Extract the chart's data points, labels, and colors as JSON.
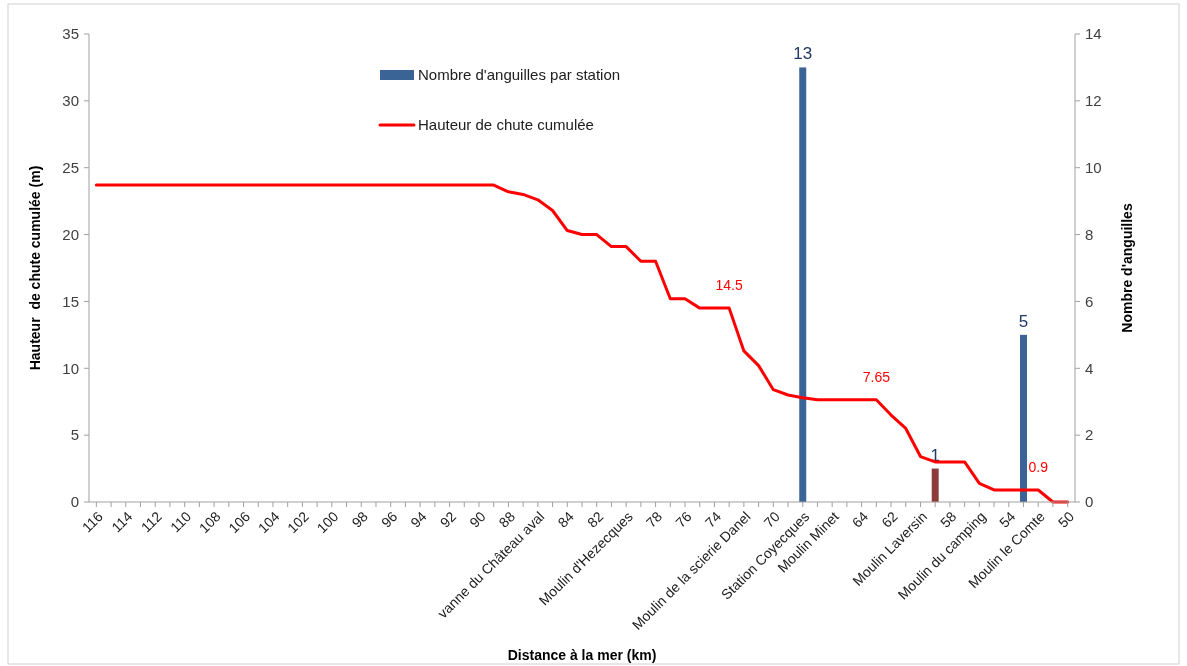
{
  "chart_data": {
    "type": "bar",
    "xlabel": "Distance à la mer (km)",
    "ylabel": "Hauteur  de chute cumulée (m)",
    "y2label": "Nombre d'anguilles",
    "categories": [
      "116",
      null,
      "114",
      null,
      "112",
      null,
      "110",
      null,
      "108",
      null,
      "106",
      null,
      "104",
      null,
      "102",
      null,
      "100",
      null,
      "98",
      null,
      "96",
      null,
      "94",
      null,
      "92",
      null,
      "90",
      null,
      "88",
      null,
      "vanne du Château aval",
      null,
      "84",
      null,
      "82",
      null,
      "Moulin d'Hezecques",
      null,
      "78",
      null,
      "76",
      null,
      "74",
      null,
      "Moulin de la scierie Danel",
      null,
      "70",
      null,
      "Station Coyecques",
      null,
      "Moulin Minet",
      null,
      "64",
      null,
      "62",
      null,
      "Moulin Laversin",
      null,
      "58",
      null,
      "Moulin du camping",
      null,
      "54",
      null,
      "Moulin le Comte",
      null,
      "50"
    ],
    "series": [
      {
        "name": "Nombre d'anguilles par station",
        "type": "bar",
        "axis": "y2",
        "color": "#3b6496",
        "values": [
          null,
          null,
          null,
          null,
          null,
          null,
          null,
          null,
          null,
          null,
          null,
          null,
          null,
          null,
          null,
          null,
          null,
          null,
          null,
          null,
          null,
          null,
          null,
          null,
          null,
          null,
          null,
          null,
          null,
          null,
          null,
          null,
          null,
          null,
          null,
          null,
          null,
          null,
          null,
          null,
          null,
          null,
          null,
          null,
          null,
          null,
          null,
          null,
          13,
          null,
          null,
          null,
          null,
          null,
          null,
          null,
          null,
          1,
          null,
          null,
          null,
          null,
          null,
          5,
          null,
          null,
          null
        ],
        "colors": [
          null,
          null,
          null,
          null,
          null,
          null,
          null,
          null,
          null,
          null,
          null,
          null,
          null,
          null,
          null,
          null,
          null,
          null,
          null,
          null,
          null,
          null,
          null,
          null,
          null,
          null,
          null,
          null,
          null,
          null,
          null,
          null,
          null,
          null,
          null,
          null,
          null,
          null,
          null,
          null,
          null,
          null,
          null,
          null,
          null,
          null,
          null,
          null,
          "#3b6496",
          null,
          null,
          null,
          null,
          null,
          null,
          null,
          null,
          "#8e3a3a",
          null,
          null,
          null,
          null,
          null,
          "#3b6496",
          null,
          null,
          null
        ],
        "value_labels": [
          null,
          null,
          null,
          null,
          null,
          null,
          null,
          null,
          null,
          null,
          null,
          null,
          null,
          null,
          null,
          null,
          null,
          null,
          null,
          null,
          null,
          null,
          null,
          null,
          null,
          null,
          null,
          null,
          null,
          null,
          null,
          null,
          null,
          null,
          null,
          null,
          null,
          null,
          null,
          null,
          null,
          null,
          null,
          null,
          null,
          null,
          null,
          null,
          "13",
          null,
          null,
          null,
          null,
          null,
          null,
          null,
          null,
          "1",
          null,
          null,
          null,
          null,
          null,
          "5",
          null,
          null,
          null
        ]
      },
      {
        "name": "Hauteur de chute cumulée",
        "type": "line",
        "axis": "y",
        "color": "#ff0000",
        "values": [
          23.7,
          23.7,
          23.7,
          23.7,
          23.7,
          23.7,
          23.7,
          23.7,
          23.7,
          23.7,
          23.7,
          23.7,
          23.7,
          23.7,
          23.7,
          23.7,
          23.7,
          23.7,
          23.7,
          23.7,
          23.7,
          23.7,
          23.7,
          23.7,
          23.7,
          23.7,
          23.7,
          23.7,
          23.2,
          23.0,
          22.6,
          21.8,
          20.3,
          20.0,
          20.0,
          19.1,
          19.1,
          18.0,
          18.0,
          15.2,
          15.2,
          14.5,
          14.5,
          14.5,
          11.3,
          10.2,
          8.4,
          8.0,
          7.8,
          7.65,
          7.65,
          7.65,
          7.65,
          7.65,
          6.5,
          5.5,
          3.4,
          3.0,
          3.0,
          3.0,
          1.4,
          0.9,
          0.9,
          0.9,
          0.9,
          0,
          0
        ],
        "value_labels": [
          null,
          null,
          null,
          null,
          null,
          null,
          null,
          null,
          null,
          null,
          null,
          null,
          null,
          null,
          null,
          null,
          null,
          null,
          null,
          null,
          null,
          null,
          null,
          null,
          null,
          null,
          null,
          null,
          null,
          null,
          null,
          null,
          null,
          null,
          null,
          null,
          null,
          null,
          null,
          null,
          null,
          null,
          null,
          "14.5",
          null,
          null,
          null,
          null,
          null,
          null,
          null,
          null,
          null,
          "7.65",
          null,
          null,
          null,
          null,
          null,
          null,
          null,
          null,
          null,
          null,
          "0.9",
          null,
          null
        ]
      }
    ],
    "ylim": [
      0,
      35
    ],
    "yticks": [
      0,
      5,
      10,
      15,
      20,
      25,
      30,
      35
    ],
    "y2lim": [
      0,
      14
    ],
    "y2ticks": [
      0,
      2,
      4,
      6,
      8,
      10,
      12,
      14
    ],
    "grid": false,
    "legend": "top",
    "marker": "none",
    "line_style": "solid"
  }
}
